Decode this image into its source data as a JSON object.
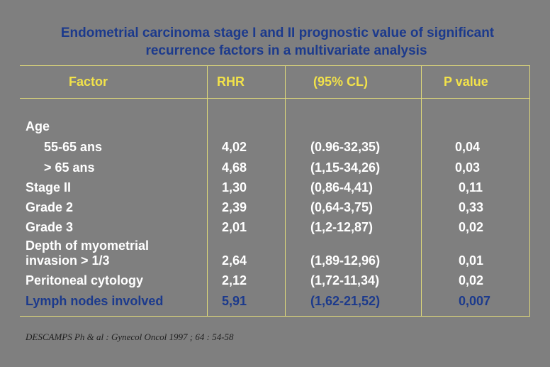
{
  "title": {
    "line1": "Endometrial carcinoma stage I and II prognostic value of significant",
    "line2": "recurrence factors in a multivariate analysis"
  },
  "table": {
    "headers": [
      "Factor",
      "RHR",
      "(95% CL)",
      "P value"
    ],
    "section_label": "Age",
    "rows": [
      {
        "factor": "55-65 ans",
        "rhr": "4,02",
        "cl": "(0.96-32,35)",
        "p": "0,04"
      },
      {
        "factor": "> 65 ans",
        "rhr": "4,68",
        "cl": "(1,15-34,26)",
        "p": "0,03"
      },
      {
        "factor": "Stage II",
        "rhr": "1,30",
        "cl": "(0,86-4,41)",
        "p": "0,11"
      },
      {
        "factor": "Grade 2",
        "rhr": "2,39",
        "cl": "(0,64-3,75)",
        "p": "0,33"
      },
      {
        "factor": "Grade 3",
        "rhr": "2,01",
        "cl": "(1,2-12,87)",
        "p": "0,02"
      },
      {
        "factor_line1": "Depth of myometrial",
        "factor": "invasion  > 1/3",
        "rhr": "2,64",
        "cl": "(1,89-12,96)",
        "p": "0,01"
      },
      {
        "factor": "Peritoneal cytology",
        "rhr": "2,12",
        "cl": "(1,72-11,34)",
        "p": "0,02"
      },
      {
        "factor": "Lymph nodes involved",
        "rhr": "5,91",
        "cl": "(1,62-21,52)",
        "p": "0,007"
      }
    ]
  },
  "citation": "DESCAMPS Ph & al : Gynecol Oncol 1997 ; 64 : 54-58",
  "colors": {
    "background": "#7f7f7f",
    "title": "#1c3a8c",
    "header_text": "#f2e24a",
    "body_text": "#ffffff",
    "highlight_row": "#1c3a8c",
    "rules": "#e0da7a"
  }
}
